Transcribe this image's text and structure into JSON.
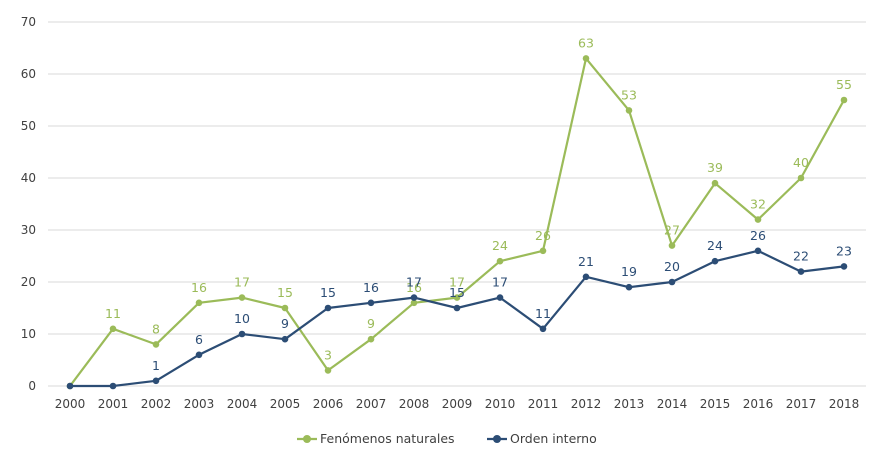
{
  "chart_data": {
    "type": "line",
    "title": "",
    "xlabel": "",
    "ylabel": "",
    "categories": [
      "2000",
      "2001",
      "2002",
      "2003",
      "2004",
      "2005",
      "2006",
      "2007",
      "2008",
      "2009",
      "2010",
      "2011",
      "2012",
      "2013",
      "2014",
      "2015",
      "2016",
      "2017",
      "2018"
    ],
    "ylim": [
      0,
      70
    ],
    "yticks": [
      "0",
      "10",
      "20",
      "30",
      "40",
      "50",
      "60",
      "70"
    ],
    "grid": true,
    "legend_position": "bottom-center",
    "series": [
      {
        "name": "Fenómenos naturales",
        "color": "#9bbb59",
        "values": [
          0,
          11,
          8,
          16,
          17,
          15,
          3,
          9,
          16,
          17,
          24,
          26,
          63,
          53,
          27,
          39,
          32,
          40,
          55
        ],
        "labels": [
          "",
          "11",
          "8",
          "16",
          "17",
          "15",
          "3",
          "9",
          "16",
          "17",
          "24",
          "26",
          "63",
          "53",
          "27",
          "39",
          "32",
          "40",
          "55"
        ]
      },
      {
        "name": "Orden interno",
        "color": "#2c4d75",
        "values": [
          0,
          0,
          1,
          6,
          10,
          9,
          15,
          16,
          17,
          15,
          17,
          11,
          21,
          19,
          20,
          24,
          26,
          22,
          23
        ],
        "labels": [
          "",
          "",
          "1",
          "6",
          "10",
          "9",
          "15",
          "16",
          "17",
          "15",
          "17",
          "11",
          "21",
          "19",
          "20",
          "24",
          "26",
          "22",
          "23"
        ]
      }
    ]
  }
}
